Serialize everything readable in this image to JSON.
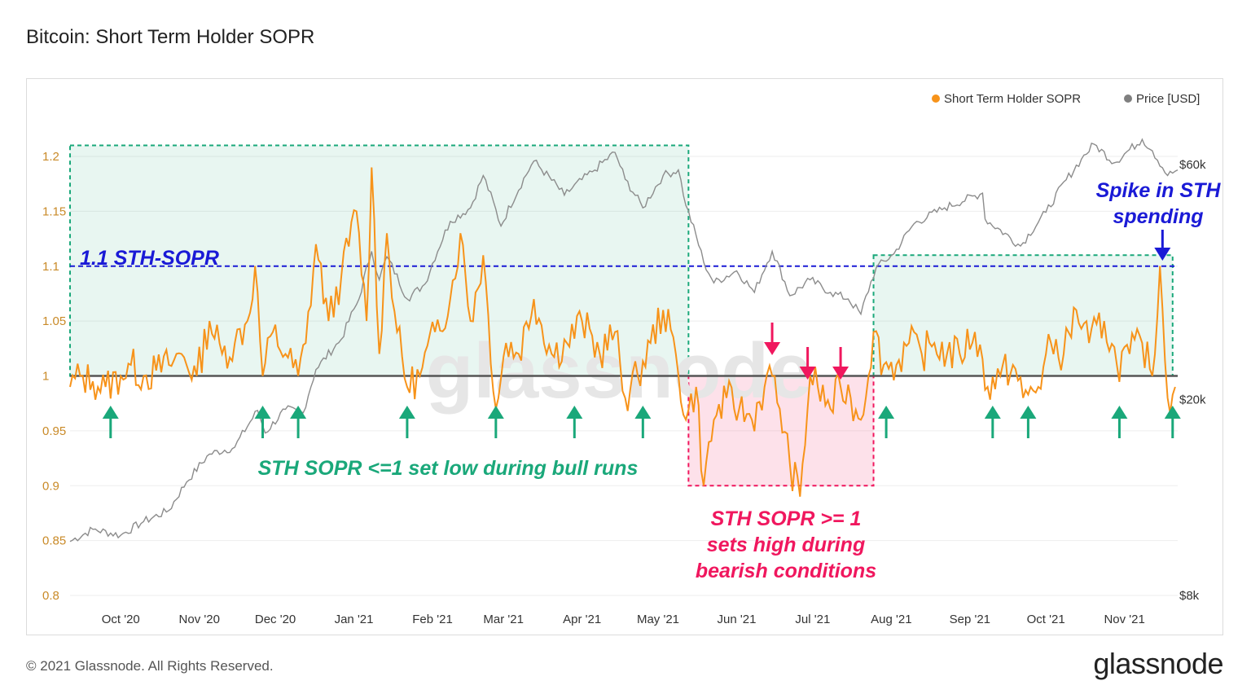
{
  "title": "Bitcoin: Short Term Holder SOPR",
  "footer": {
    "copyright": "© 2021 Glassnode. All Rights Reserved.",
    "logo": "glassnode"
  },
  "watermark": "glassnode",
  "legend": [
    {
      "label": "Short Term Holder SOPR",
      "color": "#f7931a"
    },
    {
      "label": "Price [USD]",
      "color": "#7f7f7f"
    }
  ],
  "colors": {
    "sopr": "#f7931a",
    "price": "#8c8c8c",
    "green": "#1aa87a",
    "red": "#f0175e",
    "blue": "#1a1ad6",
    "axisLeft": "#c98a28"
  },
  "annotations": {
    "level_label": "1.1 STH-SOPR",
    "bull_text": "STH SOPR <=1 set low during bull runs",
    "bear_text": [
      "STH SOPR >= 1",
      "sets high during",
      "bearish conditions"
    ],
    "spike_text": [
      "Spike in STH",
      "spending"
    ]
  },
  "chart_data": {
    "type": "line",
    "x_ticks": [
      "Oct '20",
      "Nov '20",
      "Dec '20",
      "Jan '21",
      "Feb '21",
      "Mar '21",
      "Apr '21",
      "May '21",
      "Jun '21",
      "Jul '21",
      "Aug '21",
      "Sep '21",
      "Oct '21",
      "Nov '21"
    ],
    "x_tick_dates": [
      "2020-10-01",
      "2020-11-01",
      "2020-12-01",
      "2021-01-01",
      "2021-02-01",
      "2021-03-01",
      "2021-04-01",
      "2021-05-01",
      "2021-06-01",
      "2021-07-01",
      "2021-08-01",
      "2021-09-01",
      "2021-10-01",
      "2021-11-01"
    ],
    "x_range": [
      "2020-09-11",
      "2021-11-22"
    ],
    "y_left": {
      "label": "",
      "ticks": [
        "0.8",
        "0.85",
        "0.9",
        "0.95",
        "1",
        "1.05",
        "1.1",
        "1.15",
        "1.2"
      ],
      "range": [
        0.8,
        1.2
      ]
    },
    "y_right": {
      "label": "",
      "scale": "log",
      "ticks": [
        "$8k",
        "$20k",
        "$60k"
      ],
      "tick_values": [
        8000,
        20000,
        60000
      ]
    },
    "reference_lines": [
      {
        "value": 1.0,
        "color": "#555555"
      },
      {
        "value": 1.1,
        "color": "#1a1ad6",
        "style": "dashed"
      }
    ],
    "series": [
      {
        "name": "Short Term Holder SOPR",
        "axis": "left",
        "points": [
          [
            "2020-09-11",
            0.99
          ],
          [
            "2020-09-15",
            1.0
          ],
          [
            "2020-09-20",
            0.995
          ],
          [
            "2020-09-25",
            0.99
          ],
          [
            "2020-10-01",
            1.0
          ],
          [
            "2020-10-05",
            1.01
          ],
          [
            "2020-10-10",
            1.0
          ],
          [
            "2020-10-15",
            1.005
          ],
          [
            "2020-10-20",
            1.01
          ],
          [
            "2020-10-25",
            1.02
          ],
          [
            "2020-10-31",
            1.0
          ],
          [
            "2020-11-05",
            1.05
          ],
          [
            "2020-11-10",
            1.02
          ],
          [
            "2020-11-15",
            1.03
          ],
          [
            "2020-11-20",
            1.05
          ],
          [
            "2020-11-23",
            1.1
          ],
          [
            "2020-11-26",
            1.0
          ],
          [
            "2020-11-30",
            1.04
          ],
          [
            "2020-12-05",
            1.02
          ],
          [
            "2020-12-10",
            1.0
          ],
          [
            "2020-12-13",
            1.03
          ],
          [
            "2020-12-17",
            1.12
          ],
          [
            "2020-12-22",
            1.05
          ],
          [
            "2020-12-27",
            1.09
          ],
          [
            "2021-01-02",
            1.15
          ],
          [
            "2021-01-06",
            1.05
          ],
          [
            "2021-01-08",
            1.19
          ],
          [
            "2021-01-11",
            1.02
          ],
          [
            "2021-01-14",
            1.13
          ],
          [
            "2021-01-18",
            1.04
          ],
          [
            "2021-01-22",
            0.99
          ],
          [
            "2021-01-27",
            1.0
          ],
          [
            "2021-02-02",
            1.04
          ],
          [
            "2021-02-08",
            1.07
          ],
          [
            "2021-02-12",
            1.13
          ],
          [
            "2021-02-16",
            1.05
          ],
          [
            "2021-02-21",
            1.11
          ],
          [
            "2021-02-26",
            0.97
          ],
          [
            "2021-03-02",
            1.03
          ],
          [
            "2021-03-07",
            1.02
          ],
          [
            "2021-03-13",
            1.07
          ],
          [
            "2021-03-20",
            1.02
          ],
          [
            "2021-03-26",
            1.03
          ],
          [
            "2021-04-01",
            1.05
          ],
          [
            "2021-04-08",
            1.02
          ],
          [
            "2021-04-14",
            1.04
          ],
          [
            "2021-04-18",
            0.98
          ],
          [
            "2021-04-23",
            1.0
          ],
          [
            "2021-04-28",
            1.03
          ],
          [
            "2021-05-03",
            1.06
          ],
          [
            "2021-05-08",
            1.02
          ],
          [
            "2021-05-12",
            0.96
          ],
          [
            "2021-05-16",
            0.99
          ],
          [
            "2021-05-19",
            0.9
          ],
          [
            "2021-05-23",
            0.96
          ],
          [
            "2021-05-28",
            0.98
          ],
          [
            "2021-06-02",
            0.97
          ],
          [
            "2021-06-07",
            0.96
          ],
          [
            "2021-06-12",
            0.99
          ],
          [
            "2021-06-15",
            1.0
          ],
          [
            "2021-06-18",
            0.97
          ],
          [
            "2021-06-22",
            0.92
          ],
          [
            "2021-06-26",
            0.89
          ],
          [
            "2021-06-30",
            1.0
          ],
          [
            "2021-07-03",
            0.99
          ],
          [
            "2021-07-08",
            0.97
          ],
          [
            "2021-07-12",
            0.99
          ],
          [
            "2021-07-16",
            0.98
          ],
          [
            "2021-07-20",
            0.96
          ],
          [
            "2021-07-25",
            1.04
          ],
          [
            "2021-07-29",
            1.01
          ],
          [
            "2021-08-03",
            1.01
          ],
          [
            "2021-08-08",
            1.03
          ],
          [
            "2021-08-13",
            1.02
          ],
          [
            "2021-08-18",
            1.03
          ],
          [
            "2021-08-23",
            1.02
          ],
          [
            "2021-08-28",
            1.02
          ],
          [
            "2021-09-03",
            1.04
          ],
          [
            "2021-09-08",
            0.99
          ],
          [
            "2021-09-13",
            1.0
          ],
          [
            "2021-09-18",
            1.01
          ],
          [
            "2021-09-22",
            0.98
          ],
          [
            "2021-09-28",
            0.99
          ],
          [
            "2021-10-03",
            1.03
          ],
          [
            "2021-10-08",
            1.02
          ],
          [
            "2021-10-13",
            1.06
          ],
          [
            "2021-10-18",
            1.03
          ],
          [
            "2021-10-24",
            1.05
          ],
          [
            "2021-10-29",
            1.01
          ],
          [
            "2021-11-03",
            1.02
          ],
          [
            "2021-11-08",
            1.03
          ],
          [
            "2021-11-12",
            1.0
          ],
          [
            "2021-11-15",
            1.1
          ],
          [
            "2021-11-18",
            0.98
          ],
          [
            "2021-11-21",
            0.99
          ]
        ]
      },
      {
        "name": "Price [USD]",
        "axis": "right",
        "points": [
          [
            "2020-09-11",
            10300
          ],
          [
            "2020-09-20",
            10900
          ],
          [
            "2020-10-01",
            10600
          ],
          [
            "2020-10-10",
            11300
          ],
          [
            "2020-10-20",
            11900
          ],
          [
            "2020-10-27",
            13600
          ],
          [
            "2020-11-05",
            15500
          ],
          [
            "2020-11-15",
            16000
          ],
          [
            "2020-11-24",
            19000
          ],
          [
            "2020-11-27",
            17100
          ],
          [
            "2020-12-05",
            19100
          ],
          [
            "2020-12-12",
            18800
          ],
          [
            "2020-12-17",
            23000
          ],
          [
            "2020-12-27",
            26500
          ],
          [
            "2021-01-03",
            32000
          ],
          [
            "2021-01-08",
            40000
          ],
          [
            "2021-01-11",
            35000
          ],
          [
            "2021-01-14",
            39000
          ],
          [
            "2021-01-22",
            32000
          ],
          [
            "2021-01-29",
            34300
          ],
          [
            "2021-02-08",
            46000
          ],
          [
            "2021-02-16",
            49000
          ],
          [
            "2021-02-21",
            57000
          ],
          [
            "2021-02-28",
            45000
          ],
          [
            "2021-03-13",
            61000
          ],
          [
            "2021-03-25",
            52000
          ],
          [
            "2021-04-05",
            58000
          ],
          [
            "2021-04-14",
            63500
          ],
          [
            "2021-04-18",
            56000
          ],
          [
            "2021-04-25",
            49000
          ],
          [
            "2021-05-03",
            57000
          ],
          [
            "2021-05-09",
            58500
          ],
          [
            "2021-05-12",
            49500
          ],
          [
            "2021-05-19",
            38000
          ],
          [
            "2021-05-23",
            34500
          ],
          [
            "2021-06-01",
            36500
          ],
          [
            "2021-06-08",
            33000
          ],
          [
            "2021-06-15",
            40000
          ],
          [
            "2021-06-22",
            32500
          ],
          [
            "2021-06-30",
            35000
          ],
          [
            "2021-07-08",
            33000
          ],
          [
            "2021-07-15",
            32000
          ],
          [
            "2021-07-20",
            29800
          ],
          [
            "2021-07-26",
            37000
          ],
          [
            "2021-08-02",
            39500
          ],
          [
            "2021-08-10",
            45500
          ],
          [
            "2021-08-22",
            49000
          ],
          [
            "2021-09-06",
            52500
          ],
          [
            "2021-09-07",
            46500
          ],
          [
            "2021-09-21",
            41000
          ],
          [
            "2021-10-01",
            48000
          ],
          [
            "2021-10-15",
            61500
          ],
          [
            "2021-10-20",
            66000
          ],
          [
            "2021-10-28",
            60500
          ],
          [
            "2021-11-08",
            67500
          ],
          [
            "2021-11-12",
            64000
          ],
          [
            "2021-11-18",
            57000
          ],
          [
            "2021-11-22",
            58500
          ]
        ]
      }
    ],
    "regions": [
      {
        "kind": "bull",
        "x": [
          "2020-09-11",
          "2021-05-13"
        ],
        "y": [
          1.0,
          1.21
        ]
      },
      {
        "kind": "bear",
        "x": [
          "2021-05-13",
          "2021-07-25"
        ],
        "y": [
          0.9,
          1.0
        ]
      },
      {
        "kind": "bull",
        "x": [
          "2021-07-25",
          "2021-11-20"
        ],
        "y": [
          1.0,
          1.11
        ]
      }
    ],
    "up_arrows": [
      "2020-09-27",
      "2020-11-26",
      "2020-12-10",
      "2021-01-22",
      "2021-02-26",
      "2021-03-29",
      "2021-04-25",
      "2021-07-30",
      "2021-09-10",
      "2021-09-24",
      "2021-10-30",
      "2021-11-20"
    ],
    "down_arrows": [
      "2021-06-15",
      "2021-06-29",
      "2021-07-12",
      "2021-11-16"
    ]
  }
}
